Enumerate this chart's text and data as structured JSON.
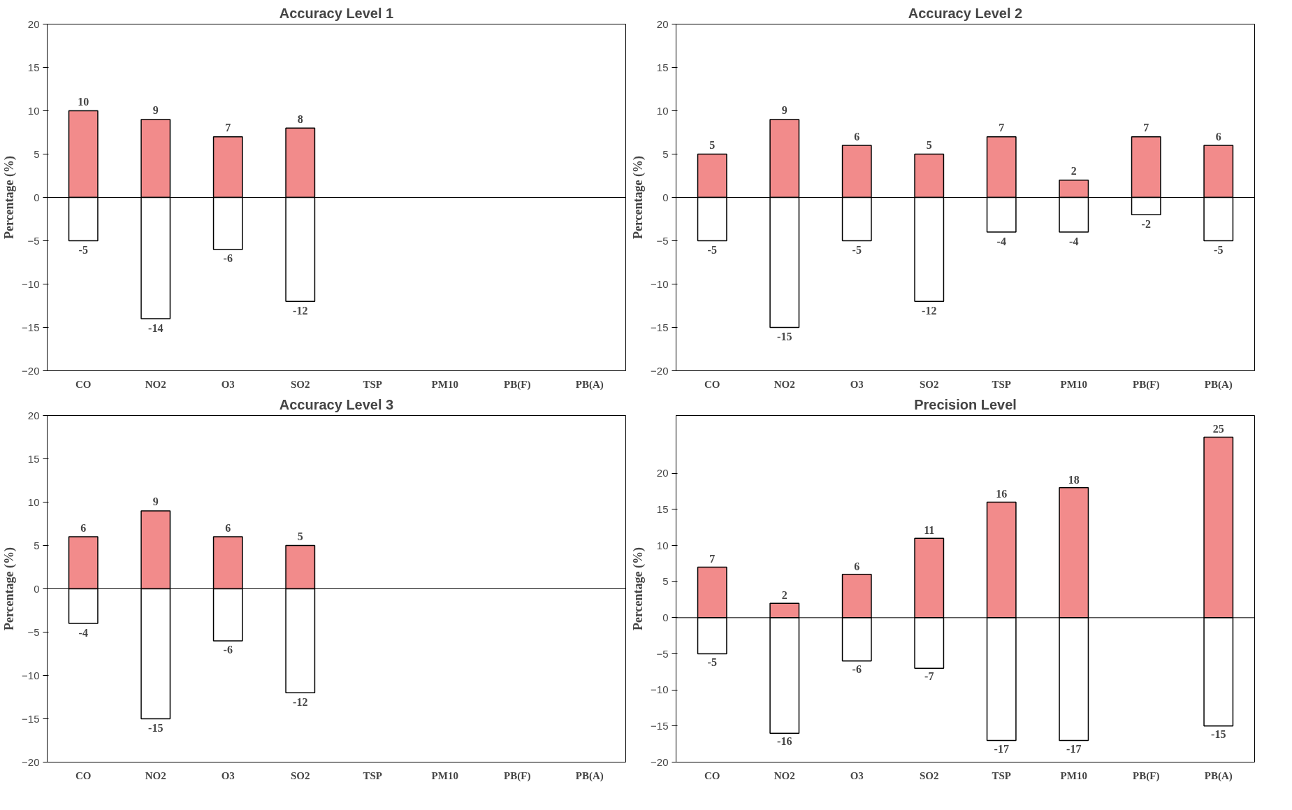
{
  "chart_data": [
    {
      "type": "bar",
      "title": "Accuracy Level 1",
      "ylabel": "Percentage (%)",
      "categories": [
        "CO",
        "NO2",
        "O3",
        "SO2",
        "TSP",
        "PM10",
        "PB(F)",
        "PB(A)"
      ],
      "ylim": [
        -20,
        20
      ],
      "yticks": [
        -20,
        -15,
        -10,
        -5,
        0,
        5,
        10,
        15,
        20
      ],
      "data_labels": true,
      "stacked": true,
      "series": [
        {
          "color": "#f28b8b",
          "values": [
            10,
            9,
            7,
            8,
            null,
            null,
            null,
            null
          ]
        },
        {
          "color": "#ffffff",
          "values": [
            -5,
            -14,
            -6,
            -12,
            null,
            null,
            null,
            null
          ]
        }
      ]
    },
    {
      "type": "bar",
      "title": "Accuracy Level 2",
      "ylabel": "Percentage (%)",
      "categories": [
        "CO",
        "NO2",
        "O3",
        "SO2",
        "TSP",
        "PM10",
        "PB(F)",
        "PB(A)"
      ],
      "ylim": [
        -20,
        20
      ],
      "yticks": [
        -20,
        -15,
        -10,
        -5,
        0,
        5,
        10,
        15,
        20
      ],
      "data_labels": true,
      "stacked": true,
      "series": [
        {
          "color": "#f28b8b",
          "values": [
            5,
            9,
            6,
            5,
            7,
            2,
            7,
            6
          ]
        },
        {
          "color": "#ffffff",
          "values": [
            -5,
            -15,
            -5,
            -12,
            -4,
            -4,
            -2,
            -5
          ]
        }
      ]
    },
    {
      "type": "bar",
      "title": "Accuracy Level 3",
      "ylabel": "Percentage (%)",
      "categories": [
        "CO",
        "NO2",
        "O3",
        "SO2",
        "TSP",
        "PM10",
        "PB(F)",
        "PB(A)"
      ],
      "ylim": [
        -20,
        20
      ],
      "yticks": [
        -20,
        -15,
        -10,
        -5,
        0,
        5,
        10,
        15,
        20
      ],
      "data_labels": true,
      "stacked": true,
      "series": [
        {
          "color": "#f28b8b",
          "values": [
            6,
            9,
            6,
            5,
            null,
            null,
            null,
            null
          ]
        },
        {
          "color": "#ffffff",
          "values": [
            -4,
            -15,
            -6,
            -12,
            null,
            null,
            null,
            null
          ]
        }
      ]
    },
    {
      "type": "bar",
      "title": "Precision Level",
      "ylabel": "Percentage (%)",
      "categories": [
        "CO",
        "NO2",
        "O3",
        "SO2",
        "TSP",
        "PM10",
        "PB(F)",
        "PB(A)"
      ],
      "ylim": [
        -20,
        28
      ],
      "yticks": [
        -20,
        -15,
        -10,
        -5,
        0,
        5,
        10,
        15,
        20
      ],
      "data_labels": true,
      "stacked": true,
      "series": [
        {
          "color": "#f28b8b",
          "values": [
            7,
            2,
            6,
            11,
            16,
            18,
            null,
            25
          ]
        },
        {
          "color": "#ffffff",
          "values": [
            -5,
            -16,
            -6,
            -7,
            -17,
            -17,
            null,
            -15
          ]
        }
      ]
    }
  ]
}
